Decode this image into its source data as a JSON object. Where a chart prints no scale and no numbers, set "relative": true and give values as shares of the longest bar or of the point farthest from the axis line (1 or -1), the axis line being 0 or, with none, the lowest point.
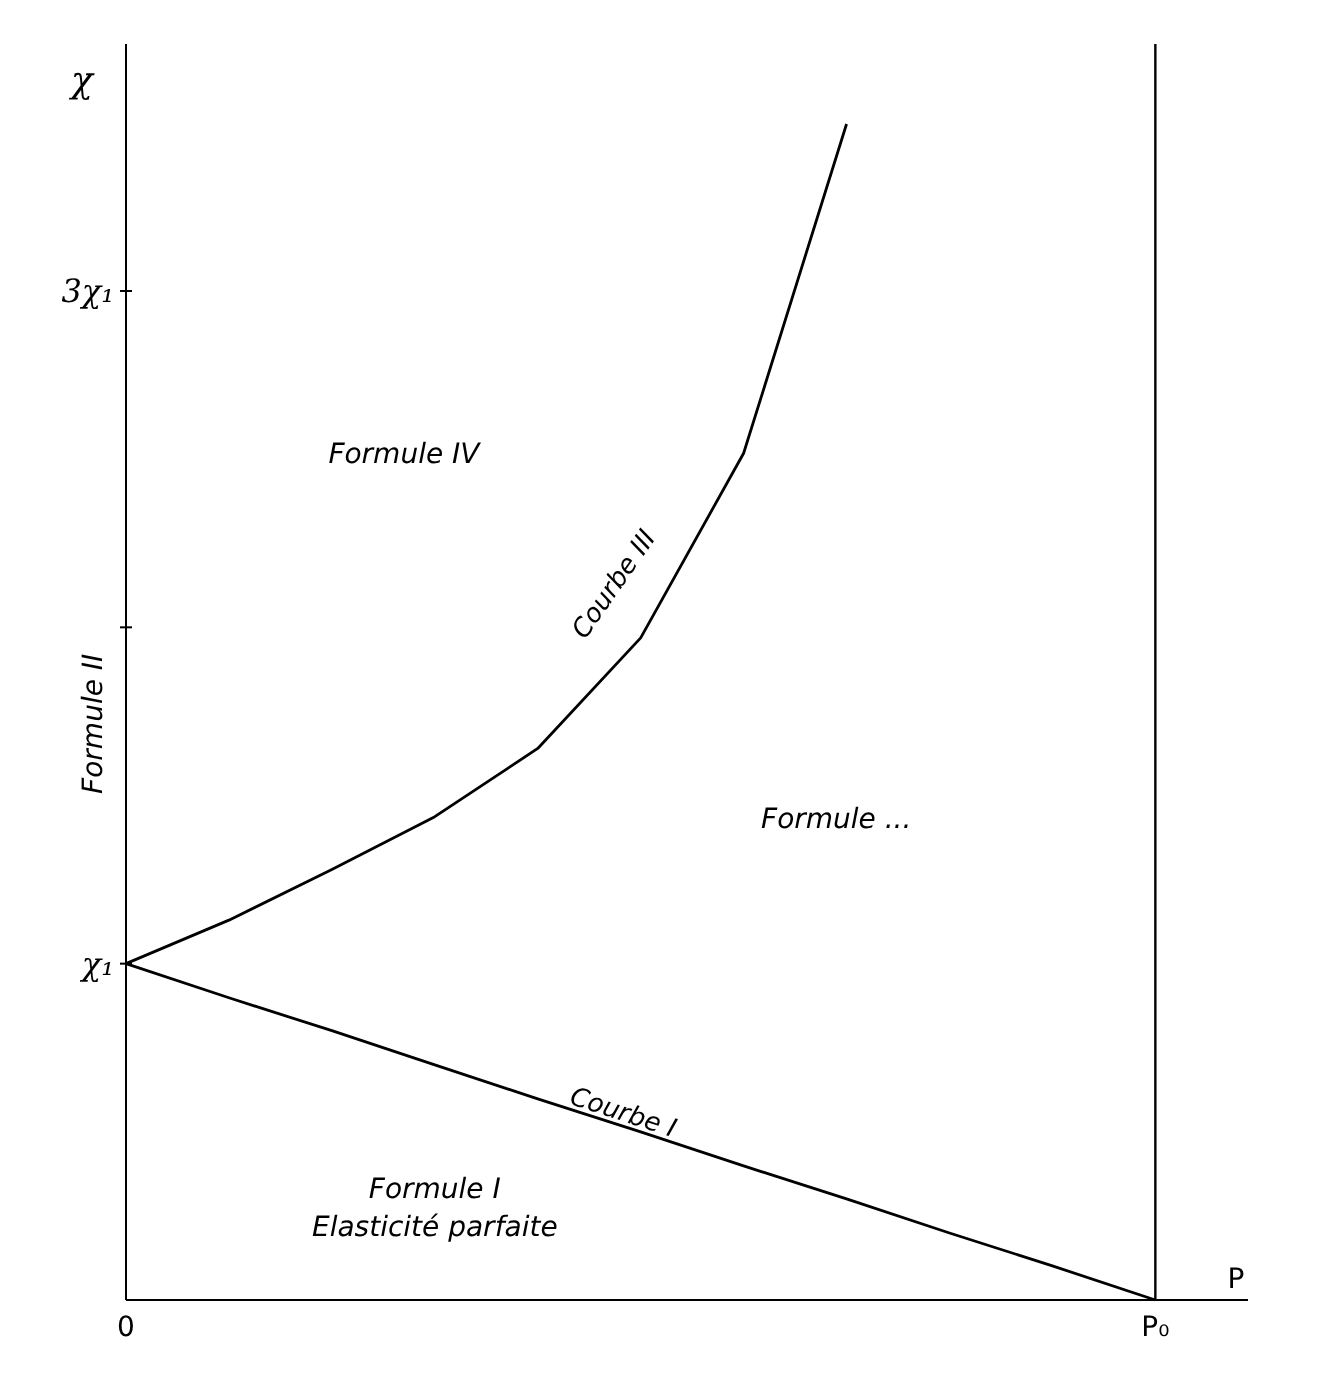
{
  "chart_data": {
    "type": "line",
    "relative": true,
    "xlabel": "P",
    "ylabel": "χ",
    "categories": [
      "0",
      null,
      null,
      null,
      null,
      null,
      null,
      null,
      null,
      null,
      "P₀"
    ],
    "series": [
      {
        "name": "Courbe III",
        "color": "#000000",
        "values": [
          0.286,
          0.323,
          0.366,
          0.411,
          0.469,
          0.563,
          0.72,
          1,
          null,
          null,
          null
        ]
      },
      {
        "name": "Courbe I",
        "color": "#000000",
        "values": [
          0.286,
          0.257,
          0.229,
          0.2,
          0.171,
          0.143,
          0.114,
          0.086,
          0.057,
          0.029,
          0
        ]
      }
    ],
    "ref_lines": [
      {
        "axis": "x",
        "value": "P₀",
        "color": "#000000"
      }
    ],
    "annotations": [
      "Formule IV",
      "Formule ...",
      "Formule I",
      "Elasticité parfaite",
      "Formule II",
      "3χ₁",
      {
        "text": "χ₁",
        "x": "0",
        "y": 0.286
      }
    ]
  }
}
